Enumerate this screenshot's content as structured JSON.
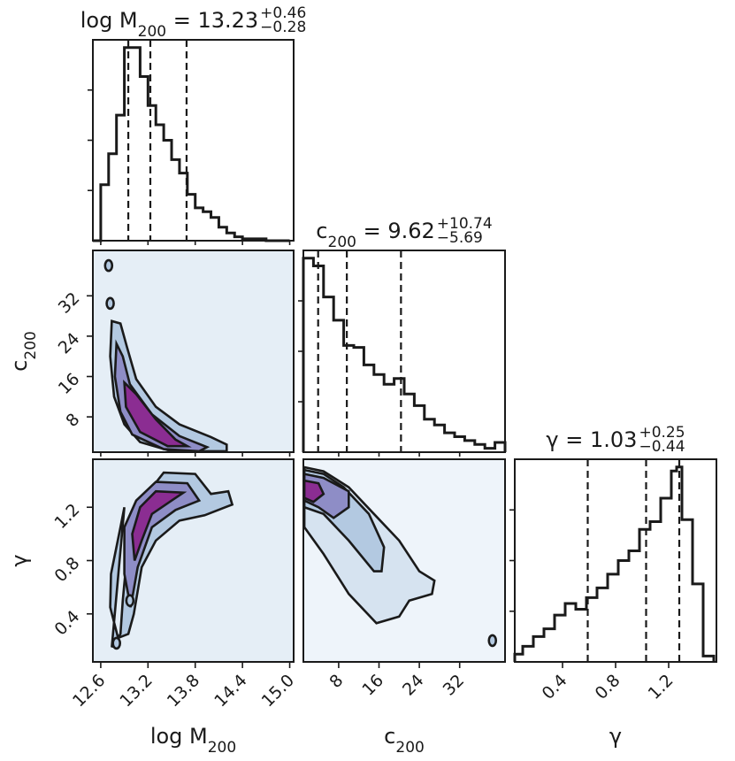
{
  "chart_data": {
    "type": "corner",
    "parameters": [
      {
        "key": "logM200",
        "label": "log M",
        "label_sub": "200",
        "range": [
          12.5,
          15.05
        ],
        "ticks": [
          "12.6",
          "13.2",
          "13.8",
          "14.4",
          "15.0"
        ],
        "title": {
          "prefix": "log M",
          "sub": "200",
          "eq": " = 13.23",
          "plus": "+0.46",
          "minus": "−0.28"
        },
        "quantiles": [
          12.95,
          13.23,
          13.69
        ],
        "histogram": {
          "edges": [
            12.5,
            12.6,
            12.7,
            12.8,
            12.9,
            13.0,
            13.1,
            13.2,
            13.3,
            13.4,
            13.5,
            13.6,
            13.7,
            13.8,
            13.9,
            14.0,
            14.1,
            14.2,
            14.3,
            14.4,
            14.5,
            14.6,
            14.7,
            14.8,
            14.9,
            15.0
          ],
          "counts": [
            0.0,
            0.29,
            0.45,
            0.65,
            1.0,
            1.0,
            0.85,
            0.7,
            0.6,
            0.52,
            0.42,
            0.35,
            0.24,
            0.17,
            0.15,
            0.12,
            0.07,
            0.04,
            0.02,
            0.01,
            0.01,
            0.01,
            0.0,
            0.0,
            0.0
          ]
        }
      },
      {
        "key": "c200",
        "label": "c",
        "label_sub": "200",
        "range": [
          1.0,
          41.0
        ],
        "ticks": [
          "8",
          "16",
          "24",
          "32"
        ],
        "title": {
          "prefix": "c",
          "sub": "200",
          "eq": " = 9.62",
          "plus": "+10.74",
          "minus": "−5.69"
        },
        "quantiles": [
          3.93,
          9.62,
          20.36
        ],
        "histogram": {
          "edges": [
            1,
            3,
            5,
            7,
            9,
            11,
            13,
            15,
            17,
            19,
            21,
            23,
            25,
            27,
            29,
            31,
            33,
            35,
            37,
            39,
            41
          ],
          "counts": [
            1.0,
            0.96,
            0.8,
            0.68,
            0.55,
            0.54,
            0.45,
            0.4,
            0.35,
            0.38,
            0.3,
            0.24,
            0.17,
            0.14,
            0.1,
            0.08,
            0.06,
            0.04,
            0.02,
            0.05
          ]
        }
      },
      {
        "key": "gamma",
        "label": "γ",
        "label_sub": "",
        "range": [
          0.04,
          1.56
        ],
        "ticks": [
          "0.4",
          "0.8",
          "1.2"
        ],
        "title": {
          "prefix": "γ",
          "sub": "",
          "eq": " = 1.03",
          "plus": "+0.25",
          "minus": "−0.44"
        },
        "quantiles": [
          0.59,
          1.03,
          1.28
        ],
        "histogram": {
          "edges": [
            0.04,
            0.1,
            0.18,
            0.26,
            0.34,
            0.42,
            0.5,
            0.58,
            0.66,
            0.74,
            0.82,
            0.9,
            0.98,
            1.06,
            1.14,
            1.22,
            1.26,
            1.3,
            1.38,
            1.46,
            1.54
          ],
          "counts": [
            0.04,
            0.08,
            0.13,
            0.17,
            0.24,
            0.3,
            0.27,
            0.33,
            0.38,
            0.45,
            0.52,
            0.57,
            0.68,
            0.72,
            0.84,
            0.98,
            1.0,
            0.73,
            0.4,
            0.03
          ]
        }
      }
    ],
    "colors": {
      "level0": "#e5eef6",
      "level1": "#b3c9e1",
      "level2": "#8e8dc6",
      "level3": "#8b2d92",
      "line": "#1a1a1a"
    },
    "contours": [
      {
        "x": "logM200",
        "y": "c200",
        "background": "#e5eef6",
        "levels": [
          {
            "fill": "#b3c9e1",
            "points": [
              [
                12.74,
                27
              ],
              [
                12.85,
                26.5
              ],
              [
                12.93,
                22
              ],
              [
                13.05,
                15.5
              ],
              [
                13.3,
                10
              ],
              [
                13.6,
                6.5
              ],
              [
                14.0,
                4
              ],
              [
                14.2,
                2.5
              ],
              [
                14.2,
                1.2
              ],
              [
                13.5,
                1.2
              ],
              [
                13.1,
                3
              ],
              [
                12.9,
                6.5
              ],
              [
                12.77,
                12
              ],
              [
                12.72,
                20
              ]
            ]
          },
          {
            "fill": "#8e8dc6",
            "points": [
              [
                12.8,
                22.5
              ],
              [
                12.88,
                20
              ],
              [
                12.97,
                14.5
              ],
              [
                13.25,
                8.5
              ],
              [
                13.6,
                4.2
              ],
              [
                13.95,
                2
              ],
              [
                13.85,
                1.2
              ],
              [
                13.4,
                1.6
              ],
              [
                13.0,
                4.5
              ],
              [
                12.85,
                9
              ],
              [
                12.78,
                16
              ]
            ]
          },
          {
            "fill": "#8b2d92",
            "points": [
              [
                12.9,
                14.8
              ],
              [
                13.05,
                12.5
              ],
              [
                13.3,
                7.5
              ],
              [
                13.55,
                3.5
              ],
              [
                13.7,
                2.2
              ],
              [
                13.45,
                2.2
              ],
              [
                13.1,
                5
              ],
              [
                12.92,
                10
              ]
            ]
          }
        ],
        "marks": [
          [
            12.7,
            38
          ],
          [
            12.72,
            30.5
          ]
        ]
      },
      {
        "x": "logM200",
        "y": "gamma",
        "background": "#e5eef6",
        "levels": [
          {
            "fill": "#b3c9e1",
            "points": [
              [
                12.74,
                0.15
              ],
              [
                12.85,
                0.25
              ],
              [
                12.88,
                0.5
              ],
              [
                12.95,
                0.95
              ],
              [
                13.12,
                1.25
              ],
              [
                13.4,
                1.46
              ],
              [
                13.8,
                1.45
              ],
              [
                14.0,
                1.3
              ],
              [
                14.22,
                1.32
              ],
              [
                14.27,
                1.22
              ],
              [
                13.92,
                1.14
              ],
              [
                13.6,
                1.1
              ],
              [
                13.3,
                0.95
              ],
              [
                13.12,
                0.75
              ],
              [
                13.02,
                0.4
              ],
              [
                12.95,
                0.25
              ],
              [
                12.82,
                0.22
              ],
              [
                12.72,
                0.45
              ],
              [
                12.73,
                0.7
              ],
              [
                12.85,
                1.05
              ],
              [
                12.9,
                1.2
              ]
            ]
          },
          {
            "fill": "#8e8dc6",
            "points": [
              [
                12.9,
                1.05
              ],
              [
                13.05,
                1.25
              ],
              [
                13.3,
                1.39
              ],
              [
                13.7,
                1.38
              ],
              [
                13.85,
                1.25
              ],
              [
                13.55,
                1.18
              ],
              [
                13.25,
                1.05
              ],
              [
                13.07,
                0.75
              ],
              [
                12.98,
                0.45
              ],
              [
                12.9,
                0.7
              ]
            ]
          },
          {
            "fill": "#8b2d92",
            "points": [
              [
                13.0,
                1.0
              ],
              [
                13.1,
                1.2
              ],
              [
                13.3,
                1.32
              ],
              [
                13.65,
                1.31
              ],
              [
                13.5,
                1.25
              ],
              [
                13.25,
                1.15
              ],
              [
                13.12,
                0.95
              ],
              [
                13.03,
                0.8
              ]
            ]
          }
        ],
        "marks": [
          [
            12.8,
            0.18
          ],
          [
            12.97,
            0.5
          ]
        ]
      },
      {
        "x": "c200",
        "y": "gamma",
        "background": "#eef4fa",
        "levels": [
          {
            "fill": "#d6e3f0",
            "points": [
              [
                1.2,
                1.5
              ],
              [
                5,
                1.47
              ],
              [
                10,
                1.35
              ],
              [
                15,
                1.15
              ],
              [
                20,
                0.95
              ],
              [
                24,
                0.72
              ],
              [
                27,
                0.65
              ],
              [
                26.5,
                0.55
              ],
              [
                22,
                0.5
              ],
              [
                20,
                0.38
              ],
              [
                15.5,
                0.33
              ],
              [
                10,
                0.55
              ],
              [
                5,
                0.85
              ],
              [
                1.2,
                1.05
              ]
            ]
          },
          {
            "fill": "#b3c9e1",
            "points": [
              [
                1.2,
                1.48
              ],
              [
                5,
                1.45
              ],
              [
                9,
                1.35
              ],
              [
                14,
                1.15
              ],
              [
                17,
                0.9
              ],
              [
                16.5,
                0.72
              ],
              [
                15,
                0.72
              ],
              [
                10,
                0.95
              ],
              [
                5,
                1.15
              ],
              [
                1.2,
                1.2
              ]
            ]
          },
          {
            "fill": "#8e8dc6",
            "points": [
              [
                1.2,
                1.45
              ],
              [
                5,
                1.42
              ],
              [
                10,
                1.32
              ],
              [
                10,
                1.2
              ],
              [
                7,
                1.12
              ],
              [
                4,
                1.2
              ],
              [
                1.2,
                1.25
              ]
            ]
          },
          {
            "fill": "#8b2d92",
            "points": [
              [
                1.2,
                1.4
              ],
              [
                4,
                1.38
              ],
              [
                5,
                1.3
              ],
              [
                3,
                1.24
              ],
              [
                1.2,
                1.27
              ]
            ]
          }
        ],
        "marks": [
          [
            38.5,
            0.2
          ]
        ]
      }
    ]
  }
}
